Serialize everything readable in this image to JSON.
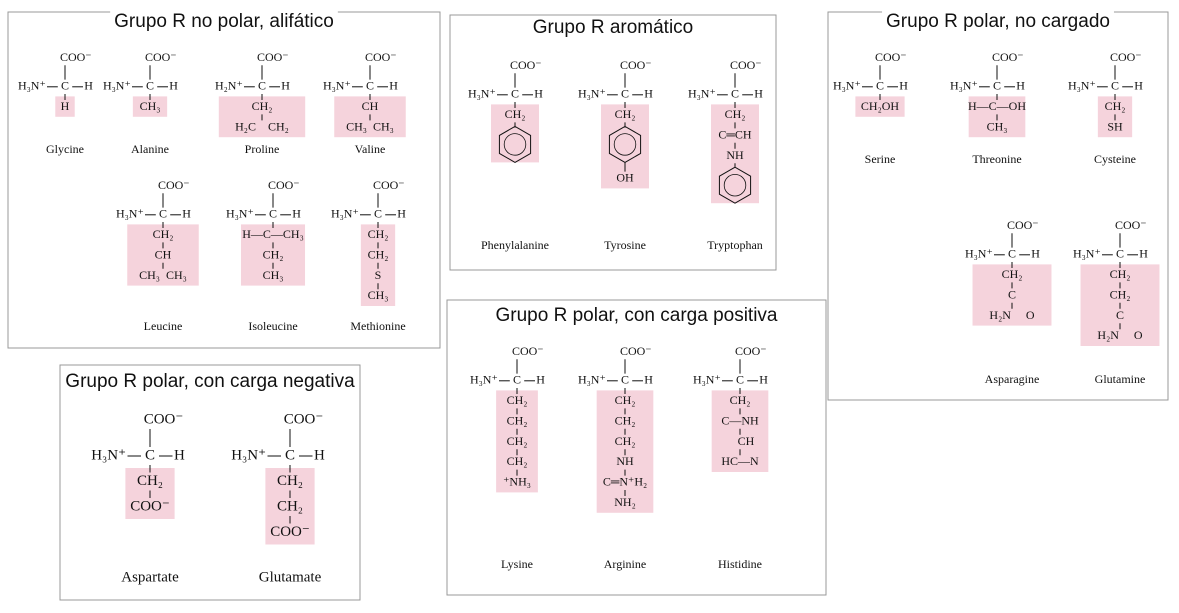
{
  "groups": [
    {
      "title": "Grupo R no polar, alifático",
      "amino_acids": [
        {
          "name": "Glycine",
          "carboxyl": "COO⁻",
          "amine": "H₃N⁺",
          "alpha": "C",
          "hydrogen": "H",
          "side": [
            "H"
          ]
        },
        {
          "name": "Alanine",
          "carboxyl": "COO⁻",
          "amine": "H₃N⁺",
          "alpha": "C",
          "hydrogen": "H",
          "side": [
            "CH₃"
          ]
        },
        {
          "name": "Proline",
          "carboxyl": "COO⁻",
          "amine": "H₂N⁺",
          "alpha": "C",
          "hydrogen": "H",
          "side": [
            "CH₂",
            "H₂C    CH₂"
          ]
        },
        {
          "name": "Valine",
          "carboxyl": "COO⁻",
          "amine": "H₃N⁺",
          "alpha": "C",
          "hydrogen": "H",
          "side": [
            "CH",
            "CH₃  CH₃"
          ]
        },
        {
          "name": "Leucine",
          "carboxyl": "COO⁻",
          "amine": "H₃N⁺",
          "alpha": "C",
          "hydrogen": "H",
          "side": [
            "CH₂",
            "CH",
            "CH₃  CH₃"
          ]
        },
        {
          "name": "Isoleucine",
          "carboxyl": "COO⁻",
          "amine": "H₃N⁺",
          "alpha": "C",
          "hydrogen": "H",
          "side": [
            "H—C—CH₃",
            "CH₂",
            "CH₃"
          ]
        },
        {
          "name": "Methionine",
          "carboxyl": "COO⁻",
          "amine": "H₃N⁺",
          "alpha": "C",
          "hydrogen": "H",
          "side": [
            "CH₂",
            "CH₂",
            "S",
            "CH₃"
          ]
        }
      ]
    },
    {
      "title": "Grupo R aromático",
      "amino_acids": [
        {
          "name": "Phenylalanine",
          "carboxyl": "COO⁻",
          "amine": "H₃N⁺",
          "alpha": "C",
          "hydrogen": "H",
          "side": [
            "CH₂"
          ]
        },
        {
          "name": "Tyrosine",
          "carboxyl": "COO⁻",
          "amine": "H₃N⁺",
          "alpha": "C",
          "hydrogen": "H",
          "side": [
            "CH₂",
            "OH"
          ]
        },
        {
          "name": "Tryptophan",
          "carboxyl": "COO⁻",
          "amine": "H₃N⁺",
          "alpha": "C",
          "hydrogen": "H",
          "side": [
            "CH₂",
            "C═CH",
            "NH"
          ]
        }
      ]
    },
    {
      "title": "Grupo R polar, no cargado",
      "amino_acids": [
        {
          "name": "Serine",
          "carboxyl": "COO⁻",
          "amine": "H₃N⁺",
          "alpha": "C",
          "hydrogen": "H",
          "side": [
            "CH₂OH"
          ]
        },
        {
          "name": "Threonine",
          "carboxyl": "COO⁻",
          "amine": "H₃N⁺",
          "alpha": "C",
          "hydrogen": "H",
          "side": [
            "H—C—OH",
            "CH₃"
          ]
        },
        {
          "name": "Cysteine",
          "carboxyl": "COO⁻",
          "amine": "H₃N⁺",
          "alpha": "C",
          "hydrogen": "H",
          "side": [
            "CH₂",
            "SH"
          ]
        },
        {
          "name": "Asparagine",
          "carboxyl": "COO⁻",
          "amine": "H₃N⁺",
          "alpha": "C",
          "hydrogen": "H",
          "side": [
            "CH₂",
            "C",
            "H₂N     O"
          ]
        },
        {
          "name": "Glutamine",
          "carboxyl": "COO⁻",
          "amine": "H₃N⁺",
          "alpha": "C",
          "hydrogen": "H",
          "side": [
            "CH₂",
            "CH₂",
            "C",
            "H₂N     O"
          ]
        }
      ]
    },
    {
      "title": "Grupo R polar, con carga negativa",
      "amino_acids": [
        {
          "name": "Aspartate",
          "carboxyl": "COO⁻",
          "amine": "H₃N⁺",
          "alpha": "C",
          "hydrogen": "H",
          "side": [
            "CH₂",
            "COO⁻"
          ]
        },
        {
          "name": "Glutamate",
          "carboxyl": "COO⁻",
          "amine": "H₃N⁺",
          "alpha": "C",
          "hydrogen": "H",
          "side": [
            "CH₂",
            "CH₂",
            "COO⁻"
          ]
        }
      ]
    },
    {
      "title": "Grupo R polar, con carga positiva",
      "amino_acids": [
        {
          "name": "Lysine",
          "carboxyl": "COO⁻",
          "amine": "H₃N⁺",
          "alpha": "C",
          "hydrogen": "H",
          "side": [
            "CH₂",
            "CH₂",
            "CH₂",
            "CH₂",
            "⁺NH₃"
          ]
        },
        {
          "name": "Arginine",
          "carboxyl": "COO⁻",
          "amine": "H₃N⁺",
          "alpha": "C",
          "hydrogen": "H",
          "side": [
            "CH₂",
            "CH₂",
            "CH₂",
            "NH",
            "C═N⁺H₂",
            "NH₂"
          ]
        },
        {
          "name": "Histidine",
          "carboxyl": "COO⁻",
          "amine": "H₃N⁺",
          "alpha": "C",
          "hydrogen": "H",
          "side": [
            "CH₂",
            "C—NH",
            "    CH",
            "HC—N"
          ]
        }
      ]
    }
  ]
}
